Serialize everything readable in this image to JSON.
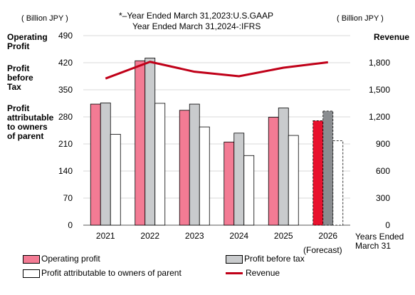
{
  "note_lines": [
    "*–Year Ended  March 31,2023:U.S.GAAP",
    "Year Ended  March 31,2024-:IFRS"
  ],
  "left_unit": "( Billion JPY )",
  "right_unit": "( Billion JPY )",
  "left_axis_labels": {
    "operating": "Operating\nProfit",
    "before_tax": "Profit\nbefore\nTax",
    "attributable": "Profit\nattributable\nto owners\nof parent"
  },
  "right_axis_label": "Revenue",
  "x_axis_title": "Years Ended\nMarch 31",
  "forecast_label": "(Forecast)",
  "legend": {
    "operating_profit": "Operating profit",
    "profit_before_tax": "Profit before tax",
    "profit_attributable": "Profit attributable to owners of parent",
    "revenue": "Revenue"
  },
  "colors": {
    "operating_profit": "#f37b94",
    "operating_profit_forecast": "#e8112d",
    "profit_before_tax": "#c9cbcd",
    "profit_before_tax_forecast": "#8a8d90",
    "profit_attributable": "#ffffff",
    "revenue": "#c00018",
    "gridline": "#d9d9d9"
  },
  "chart_data": {
    "type": "bar",
    "categories": [
      "2021",
      "2022",
      "2023",
      "2024",
      "2025",
      "2026"
    ],
    "forecast_category": "2026",
    "ylim": [
      0,
      490
    ],
    "y_ticks": [
      0,
      70,
      140,
      210,
      280,
      350,
      420,
      490
    ],
    "y2lim": [
      0,
      2100
    ],
    "y2_ticks": [
      "0",
      "300",
      "600",
      "900",
      "1,200",
      "1,500",
      "1,800"
    ],
    "y2_tick_values": [
      0,
      300,
      600,
      900,
      1200,
      1500,
      1800
    ],
    "grid": true,
    "legend_position": "bottom",
    "series": [
      {
        "name": "Operating profit",
        "axis": "left",
        "values": [
          313,
          425,
          297,
          215,
          279,
          270
        ]
      },
      {
        "name": "Profit before tax",
        "axis": "left",
        "values": [
          316,
          432,
          313,
          238,
          303,
          295
        ]
      },
      {
        "name": "Profit attributable to owners of parent",
        "axis": "left",
        "values": [
          235,
          315,
          254,
          180,
          232,
          218
        ]
      },
      {
        "name": "Revenue",
        "type": "line",
        "axis": "right",
        "values": [
          1625,
          1810,
          1700,
          1650,
          1745,
          1805
        ]
      }
    ]
  }
}
